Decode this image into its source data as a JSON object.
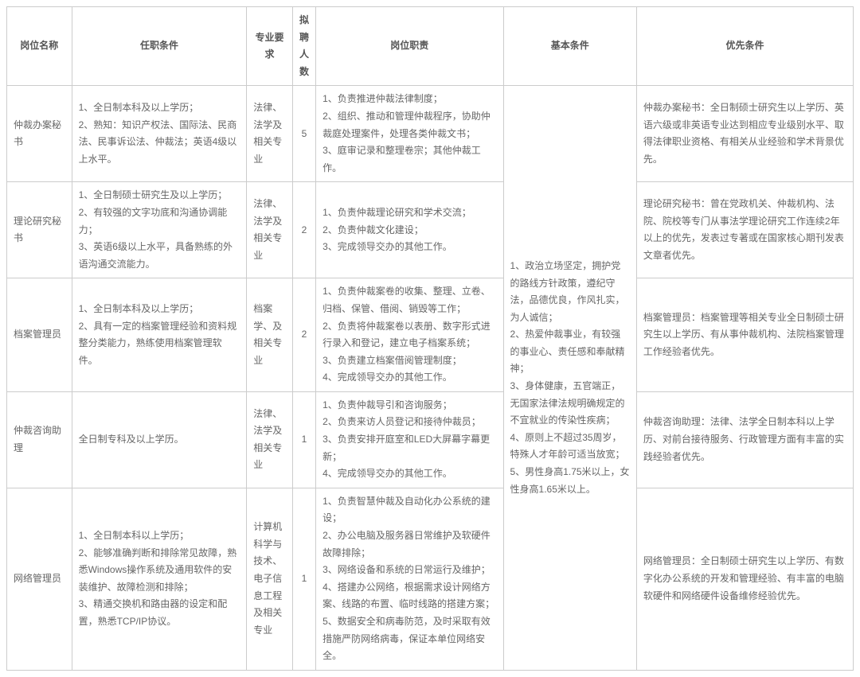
{
  "headers": {
    "position": "岗位名称",
    "requirements": "任职条件",
    "major": "专业要求",
    "number": "拟聘人数",
    "duties": "岗位职责",
    "basic": "基本条件",
    "preference": "优先条件"
  },
  "basic_conditions": "1、政治立场坚定，拥护党的路线方针政策，遵纪守法，品德优良，作风扎实，为人诚信；\n2、热爱仲裁事业，有较强的事业心、责任感和奉献精神；\n3、身体健康，五官端正，无国家法律法规明确规定的不宜就业的传染性疾病；\n4、原则上不超过35周岁，特殊人才年龄可适当放宽；\n5、男性身高1.75米以上，女性身高1.65米以上。",
  "rows": [
    {
      "position": "仲裁办案秘书",
      "requirements": "1、全日制本科及以上学历；\n2、熟知：知识产权法、国际法、民商法、民事诉讼法、仲裁法；英语4级以上水平。",
      "major": "法律、法学及相关专业",
      "number": "5",
      "duties": "1、负责推进仲裁法律制度；\n2、组织、推动和管理仲裁程序，协助仲裁庭处理案件，处理各类仲裁文书；\n3、庭审记录和整理卷宗；其他仲裁工作。",
      "preference": "仲裁办案秘书：全日制硕士研究生以上学历、英语六级或非英语专业达到相应专业级别水平、取得法律职业资格、有相关从业经验和学术背景优先。"
    },
    {
      "position": "理论研究秘书",
      "requirements": "1、全日制硕士研究生及以上学历；\n2、有较强的文字功底和沟通协调能力；\n3、英语6级以上水平，具备熟练的外语沟通交流能力。",
      "major": "法律、法学及相关专业",
      "number": "2",
      "duties": "1、负责仲裁理论研究和学术交流；\n2、负责仲裁文化建设；\n3、完成领导交办的其他工作。",
      "preference": "理论研究秘书：曾在党政机关、仲裁机构、法院、院校等专门从事法学理论研究工作连续2年以上的优先，发表过专著或在国家核心期刊发表文章者优先。"
    },
    {
      "position": "档案管理员",
      "requirements": "1、全日制本科及以上学历；\n2、具有一定的档案管理经验和资料规整分类能力，熟练使用档案管理软件。",
      "major": "档案学、及相关专业",
      "number": "2",
      "duties": "1、负责仲裁案卷的收集、整理、立卷、归档、保管、借阅、销毁等工作；\n2、负责将仲裁案卷以表册、数字形式进行录入和登记，建立电子档案系统；\n3、负责建立档案借阅管理制度；\n4、完成领导交办的其他工作。",
      "preference": "档案管理员：档案管理等相关专业全日制硕士研究生以上学历、有从事仲裁机构、法院档案管理工作经验者优先。"
    },
    {
      "position": "仲裁咨询助理",
      "requirements": "全日制专科及以上学历。",
      "major": "法律、法学及相关专业",
      "number": "1",
      "duties": "1、负责仲裁导引和咨询服务；\n2、负责来访人员登记和接待仲裁员；\n3、负责安排开庭室和LED大屏幕字幕更新；\n4、完成领导交办的其他工作。",
      "preference": "仲裁咨询助理：法律、法学全日制本科以上学历、对前台接待服务、行政管理方面有丰富的实践经验者优先。"
    },
    {
      "position": "网络管理员",
      "requirements": "1、全日制本科以上学历；\n2、能够准确判断和排除常见故障，熟悉Windows操作系统及通用软件的安装维护、故障检测和排除；\n3、精通交换机和路由器的设定和配置，熟悉TCP/IP协议。",
      "major": "计算机科学与技术、电子信息工程及相关专业",
      "number": "1",
      "duties": "1、负责智慧仲裁及自动化办公系统的建设；\n2、办公电脑及服务器日常维护及软硬件故障排除；\n3、网络设备和系统的日常运行及维护；\n4、搭建办公网络，根据需求设计网络方案、线路的布置、临时线路的搭建方案；\n5、数据安全和病毒防范，及时采取有效措施严防网络病毒，保证本单位网络安全。",
      "preference": "网络管理员：全日制硕士研究生以上学历、有数字化办公系统的开发和管理经验、有丰富的电脑软硬件和网络硬件设备维修经验优先。"
    }
  ]
}
